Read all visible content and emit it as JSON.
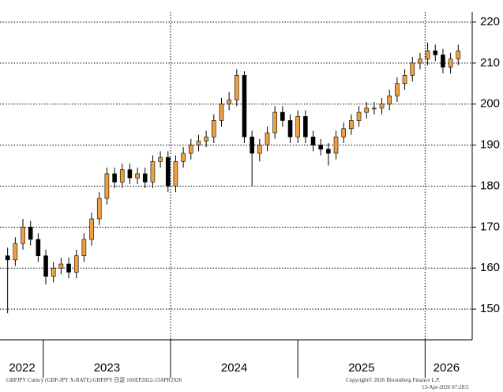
{
  "chart_data": {
    "type": "candlestick",
    "footer_left": "GBPJPY Curncy (GBP-JPY X-RATE) GBPJPY 日足 16SEP2022-13APR2026",
    "footer_right": [
      "Copyright© 2026 Bloomberg Finance L.P.",
      "13-Apr-2026 07:28:5"
    ],
    "x": [
      2022.72,
      2022.78,
      2022.84,
      2022.9,
      2022.96,
      2023.02,
      2023.08,
      2023.14,
      2023.2,
      2023.26,
      2023.32,
      2023.38,
      2023.44,
      2023.5,
      2023.56,
      2023.62,
      2023.68,
      2023.74,
      2023.8,
      2023.86,
      2023.92,
      2023.98,
      2024.04,
      2024.1,
      2024.16,
      2024.22,
      2024.28,
      2024.34,
      2024.4,
      2024.46,
      2024.52,
      2024.58,
      2024.64,
      2024.7,
      2024.76,
      2024.82,
      2024.88,
      2024.94,
      2025.0,
      2025.06,
      2025.12,
      2025.18,
      2025.24,
      2025.3,
      2025.36,
      2025.42,
      2025.48,
      2025.54,
      2025.6,
      2025.66,
      2025.72,
      2025.78,
      2025.84,
      2025.9,
      2025.96,
      2026.02,
      2026.08,
      2026.14,
      2026.2,
      2026.26
    ],
    "open": [
      163,
      162,
      166,
      170,
      167,
      163,
      158,
      160,
      161,
      159,
      163,
      167,
      172,
      177,
      183,
      181,
      184,
      182,
      183,
      181,
      186,
      187,
      180,
      186,
      188,
      190,
      191,
      192,
      196,
      200,
      201,
      207,
      192,
      188,
      190,
      193,
      198,
      196,
      192,
      197,
      192,
      190,
      189,
      188,
      192,
      194,
      196,
      198,
      199,
      199,
      200,
      202,
      205,
      207,
      210,
      211,
      213,
      212,
      209,
      211
    ],
    "high": [
      165,
      167.5,
      172,
      171.5,
      168.5,
      164.5,
      161.5,
      162.5,
      162.5,
      164.5,
      168.5,
      173.5,
      178.5,
      184.5,
      184.5,
      185.5,
      185.5,
      184.5,
      184.5,
      187.5,
      188.5,
      188.5,
      187.5,
      189.5,
      191.5,
      192.5,
      193.5,
      197.5,
      201.5,
      203,
      208.5,
      208,
      193.5,
      191.5,
      194.5,
      199.5,
      199.5,
      197.5,
      198.5,
      198.5,
      193.5,
      191.5,
      190.5,
      193.5,
      195.5,
      197.5,
      199.5,
      200.5,
      200.5,
      201.5,
      203.5,
      206.5,
      208.5,
      211.5,
      212.5,
      215,
      214.5,
      213.5,
      212.5,
      214.5
    ],
    "low": [
      149,
      160.5,
      164.5,
      165.5,
      161.5,
      156,
      156.5,
      158.5,
      157.5,
      157.5,
      161.5,
      165.5,
      170.5,
      175.5,
      179.5,
      179.5,
      180.5,
      180.5,
      179.5,
      179.5,
      184.5,
      178.5,
      178.5,
      184.5,
      186.5,
      188.5,
      189.5,
      190.5,
      194.5,
      198.5,
      199.5,
      190.5,
      180,
      186,
      188.5,
      191.5,
      194.5,
      190.5,
      190.5,
      190.5,
      188.5,
      187.5,
      185,
      186.5,
      190.5,
      192.5,
      194.5,
      196.5,
      197.5,
      197.5,
      198.5,
      200.5,
      203.5,
      205.5,
      208.5,
      209.5,
      210.5,
      207.5,
      207.5,
      209.5
    ],
    "close": [
      162,
      166,
      170,
      167,
      163,
      158,
      160,
      161,
      159,
      163,
      167,
      172,
      177,
      183,
      181,
      184,
      182,
      183,
      181,
      186,
      187,
      180,
      186,
      188,
      190,
      191,
      192,
      196,
      200,
      201,
      207,
      192,
      188,
      190,
      193,
      198,
      196,
      192,
      197,
      192,
      190,
      189,
      188,
      192,
      194,
      196,
      198,
      199,
      199,
      200,
      202,
      205,
      207,
      210,
      211,
      213,
      212,
      209,
      211,
      213
    ],
    "up_color": "#f0a040",
    "down_color": "#000000",
    "xlim": [
      2022.66,
      2026.37
    ],
    "xticks": [
      2023,
      2024,
      2025,
      2026
    ],
    "xgrid": [
      2024,
      2026
    ],
    "year_labels": [
      "2022",
      "2023",
      "2024",
      "2025",
      "2026"
    ],
    "ylim": [
      142.5,
      222.5
    ],
    "yticks": [
      150,
      160,
      170,
      180,
      190,
      200,
      210,
      220
    ],
    "grid": true
  }
}
